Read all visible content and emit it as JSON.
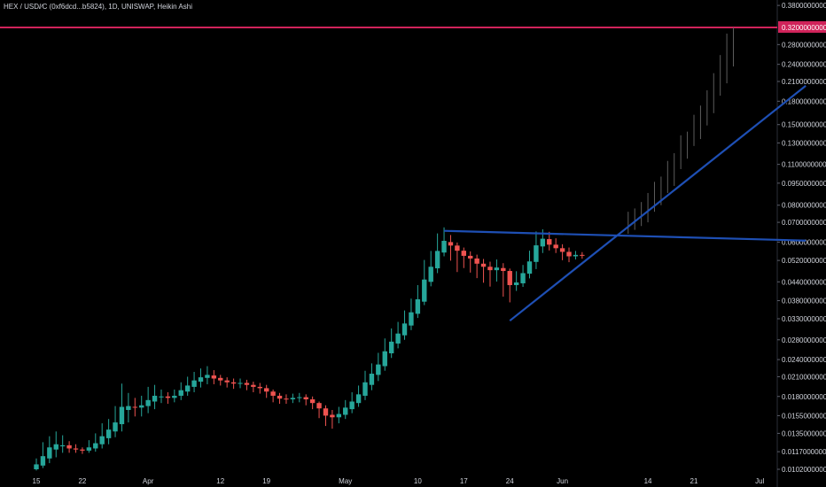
{
  "header": {
    "symbol_line": "HEX / USD/∕C (0xf6dcd...b5824), 1D, UNISWAP, Heikin Ashi"
  },
  "colors": {
    "background": "#000000",
    "up_candle": "#26a69a",
    "down_candle": "#ef5350",
    "projection": "#5d5d5d",
    "trendline": "#1e4fb4",
    "horizontal_line": "#d0235a",
    "axis_text": "#d1d4dc"
  },
  "chart_data": {
    "type": "candlestick",
    "chart_style": "Heikin Ashi",
    "scale": "log",
    "x_axis": {
      "ticks": [
        "15",
        "22",
        "Apr",
        "12",
        "19",
        "May",
        "10",
        "17",
        "24",
        "Jun",
        "14",
        "21",
        "Jul"
      ],
      "tick_days": [
        0,
        7,
        17,
        28,
        35,
        47,
        58,
        65,
        72,
        80,
        93,
        100,
        110
      ]
    },
    "y_axis": {
      "ticks": [
        "0.3800000000",
        "0.2800000000",
        "0.2400000000",
        "0.2100000000",
        "0.1800000000",
        "0.1500000000",
        "0.1300000000",
        "0.1100000000",
        "0.0950000000",
        "0.0800000000",
        "0.0700000000",
        "0.0600000000",
        "0.0520000000",
        "0.0440000000",
        "0.0380000000",
        "0.0330000000",
        "0.0280000000",
        "0.0240000000",
        "0.0210000000",
        "0.0180000000",
        "0.0155000000",
        "0.0135000000",
        "0.0117000000",
        "0.0102000000"
      ],
      "tick_values": [
        0.38,
        0.28,
        0.24,
        0.21,
        0.18,
        0.15,
        0.13,
        0.11,
        0.095,
        0.08,
        0.07,
        0.06,
        0.052,
        0.044,
        0.038,
        0.033,
        0.028,
        0.024,
        0.021,
        0.018,
        0.0155,
        0.0135,
        0.0117,
        0.0102
      ],
      "highlighted_label": "0.3200000000",
      "highlighted_value": 0.32
    },
    "candles": [
      {
        "day": 0,
        "o": 0.0102,
        "c": 0.0106,
        "h": 0.0111,
        "l": 0.0101
      },
      {
        "day": 1,
        "o": 0.0105,
        "c": 0.0113,
        "h": 0.0126,
        "l": 0.0103
      },
      {
        "day": 2,
        "o": 0.0111,
        "c": 0.0121,
        "h": 0.0132,
        "l": 0.0107
      },
      {
        "day": 3,
        "o": 0.0119,
        "c": 0.0124,
        "h": 0.0137,
        "l": 0.0112
      },
      {
        "day": 4,
        "o": 0.0122,
        "c": 0.0123,
        "h": 0.0133,
        "l": 0.0116
      },
      {
        "day": 5,
        "o": 0.0123,
        "c": 0.012,
        "h": 0.0127,
        "l": 0.0116
      },
      {
        "day": 6,
        "o": 0.012,
        "c": 0.0119,
        "h": 0.0124,
        "l": 0.0116
      },
      {
        "day": 7,
        "o": 0.0119,
        "c": 0.0118,
        "h": 0.0121,
        "l": 0.0115
      },
      {
        "day": 8,
        "o": 0.0118,
        "c": 0.0121,
        "h": 0.0128,
        "l": 0.0116
      },
      {
        "day": 9,
        "o": 0.012,
        "c": 0.0125,
        "h": 0.0135,
        "l": 0.0117
      },
      {
        "day": 10,
        "o": 0.0124,
        "c": 0.0132,
        "h": 0.0146,
        "l": 0.012
      },
      {
        "day": 11,
        "o": 0.013,
        "c": 0.0139,
        "h": 0.0151,
        "l": 0.0124
      },
      {
        "day": 12,
        "o": 0.0137,
        "c": 0.0147,
        "h": 0.0167,
        "l": 0.0131
      },
      {
        "day": 13,
        "o": 0.0145,
        "c": 0.0166,
        "h": 0.0199,
        "l": 0.0137
      },
      {
        "day": 14,
        "o": 0.0162,
        "c": 0.0167,
        "h": 0.0185,
        "l": 0.0147
      },
      {
        "day": 15,
        "o": 0.0166,
        "c": 0.0165,
        "h": 0.0178,
        "l": 0.0154
      },
      {
        "day": 16,
        "o": 0.0165,
        "c": 0.0168,
        "h": 0.0181,
        "l": 0.0154
      },
      {
        "day": 17,
        "o": 0.0167,
        "c": 0.0175,
        "h": 0.0194,
        "l": 0.0158
      },
      {
        "day": 18,
        "o": 0.0173,
        "c": 0.0181,
        "h": 0.0197,
        "l": 0.0163
      },
      {
        "day": 19,
        "o": 0.018,
        "c": 0.018,
        "h": 0.019,
        "l": 0.0171
      },
      {
        "day": 20,
        "o": 0.018,
        "c": 0.0178,
        "h": 0.0186,
        "l": 0.017
      },
      {
        "day": 21,
        "o": 0.0178,
        "c": 0.0181,
        "h": 0.019,
        "l": 0.0172
      },
      {
        "day": 22,
        "o": 0.0181,
        "c": 0.0189,
        "h": 0.0201,
        "l": 0.0175
      },
      {
        "day": 23,
        "o": 0.0187,
        "c": 0.0196,
        "h": 0.021,
        "l": 0.0181
      },
      {
        "day": 24,
        "o": 0.0194,
        "c": 0.0204,
        "h": 0.0218,
        "l": 0.0186
      },
      {
        "day": 25,
        "o": 0.0202,
        "c": 0.0209,
        "h": 0.0224,
        "l": 0.0193
      },
      {
        "day": 26,
        "o": 0.0208,
        "c": 0.0213,
        "h": 0.0228,
        "l": 0.0198
      },
      {
        "day": 27,
        "o": 0.0212,
        "c": 0.0207,
        "h": 0.0221,
        "l": 0.0198
      },
      {
        "day": 28,
        "o": 0.0208,
        "c": 0.0204,
        "h": 0.0213,
        "l": 0.0196
      },
      {
        "day": 29,
        "o": 0.0204,
        "c": 0.0201,
        "h": 0.0209,
        "l": 0.0193
      },
      {
        "day": 30,
        "o": 0.0201,
        "c": 0.0199,
        "h": 0.0207,
        "l": 0.0191
      },
      {
        "day": 31,
        "o": 0.0199,
        "c": 0.02,
        "h": 0.0207,
        "l": 0.0192
      },
      {
        "day": 32,
        "o": 0.02,
        "c": 0.0197,
        "h": 0.0205,
        "l": 0.0189
      },
      {
        "day": 33,
        "o": 0.0197,
        "c": 0.0194,
        "h": 0.0202,
        "l": 0.0186
      },
      {
        "day": 34,
        "o": 0.0194,
        "c": 0.0192,
        "h": 0.02,
        "l": 0.0184
      },
      {
        "day": 35,
        "o": 0.0192,
        "c": 0.0187,
        "h": 0.0197,
        "l": 0.0178
      },
      {
        "day": 36,
        "o": 0.0187,
        "c": 0.0181,
        "h": 0.019,
        "l": 0.0172
      },
      {
        "day": 37,
        "o": 0.0181,
        "c": 0.0177,
        "h": 0.0185,
        "l": 0.017
      },
      {
        "day": 38,
        "o": 0.0177,
        "c": 0.0176,
        "h": 0.0183,
        "l": 0.017
      },
      {
        "day": 39,
        "o": 0.0176,
        "c": 0.0178,
        "h": 0.0184,
        "l": 0.0171
      },
      {
        "day": 40,
        "o": 0.0178,
        "c": 0.0179,
        "h": 0.0185,
        "l": 0.0172
      },
      {
        "day": 41,
        "o": 0.0179,
        "c": 0.0176,
        "h": 0.0183,
        "l": 0.0168
      },
      {
        "day": 42,
        "o": 0.0176,
        "c": 0.0171,
        "h": 0.018,
        "l": 0.0163
      },
      {
        "day": 43,
        "o": 0.0171,
        "c": 0.0164,
        "h": 0.0173,
        "l": 0.0152
      },
      {
        "day": 44,
        "o": 0.0164,
        "c": 0.0155,
        "h": 0.0168,
        "l": 0.0143
      },
      {
        "day": 45,
        "o": 0.0156,
        "c": 0.0153,
        "h": 0.0162,
        "l": 0.014
      },
      {
        "day": 46,
        "o": 0.0153,
        "c": 0.0157,
        "h": 0.0166,
        "l": 0.0146
      },
      {
        "day": 47,
        "o": 0.0156,
        "c": 0.0165,
        "h": 0.0175,
        "l": 0.0151
      },
      {
        "day": 48,
        "o": 0.0163,
        "c": 0.0173,
        "h": 0.0186,
        "l": 0.0158
      },
      {
        "day": 49,
        "o": 0.0171,
        "c": 0.0183,
        "h": 0.0196,
        "l": 0.0166
      },
      {
        "day": 50,
        "o": 0.0181,
        "c": 0.0201,
        "h": 0.022,
        "l": 0.0175
      },
      {
        "day": 51,
        "o": 0.0197,
        "c": 0.0215,
        "h": 0.0233,
        "l": 0.0189
      },
      {
        "day": 52,
        "o": 0.0213,
        "c": 0.0231,
        "h": 0.0253,
        "l": 0.0203
      },
      {
        "day": 53,
        "o": 0.0228,
        "c": 0.0256,
        "h": 0.0283,
        "l": 0.022
      },
      {
        "day": 54,
        "o": 0.0252,
        "c": 0.0276,
        "h": 0.0306,
        "l": 0.0243
      },
      {
        "day": 55,
        "o": 0.0272,
        "c": 0.0294,
        "h": 0.0322,
        "l": 0.0262
      },
      {
        "day": 56,
        "o": 0.029,
        "c": 0.0318,
        "h": 0.0352,
        "l": 0.028
      },
      {
        "day": 57,
        "o": 0.0313,
        "c": 0.0347,
        "h": 0.0386,
        "l": 0.0302
      },
      {
        "day": 58,
        "o": 0.0343,
        "c": 0.0384,
        "h": 0.0429,
        "l": 0.0332
      },
      {
        "day": 59,
        "o": 0.0377,
        "c": 0.0448,
        "h": 0.0522,
        "l": 0.0367
      },
      {
        "day": 60,
        "o": 0.044,
        "c": 0.0495,
        "h": 0.056,
        "l": 0.0425
      },
      {
        "day": 61,
        "o": 0.0489,
        "c": 0.056,
        "h": 0.0642,
        "l": 0.0471
      },
      {
        "day": 62,
        "o": 0.0553,
        "c": 0.0606,
        "h": 0.0673,
        "l": 0.0537
      },
      {
        "day": 63,
        "o": 0.06,
        "c": 0.0584,
        "h": 0.0634,
        "l": 0.0519
      },
      {
        "day": 64,
        "o": 0.0584,
        "c": 0.0561,
        "h": 0.0598,
        "l": 0.0475
      },
      {
        "day": 65,
        "o": 0.0561,
        "c": 0.0539,
        "h": 0.0575,
        "l": 0.049
      },
      {
        "day": 66,
        "o": 0.0539,
        "c": 0.0528,
        "h": 0.0558,
        "l": 0.0473
      },
      {
        "day": 67,
        "o": 0.0528,
        "c": 0.0507,
        "h": 0.0544,
        "l": 0.0453
      },
      {
        "day": 68,
        "o": 0.0507,
        "c": 0.0495,
        "h": 0.0526,
        "l": 0.0437
      },
      {
        "day": 69,
        "o": 0.0495,
        "c": 0.0482,
        "h": 0.0515,
        "l": 0.0424
      },
      {
        "day": 70,
        "o": 0.0482,
        "c": 0.0492,
        "h": 0.0524,
        "l": 0.0441
      },
      {
        "day": 71,
        "o": 0.049,
        "c": 0.0479,
        "h": 0.0509,
        "l": 0.0392
      },
      {
        "day": 72,
        "o": 0.0479,
        "c": 0.0429,
        "h": 0.0488,
        "l": 0.0375
      },
      {
        "day": 73,
        "o": 0.0429,
        "c": 0.0438,
        "h": 0.0478,
        "l": 0.041
      },
      {
        "day": 74,
        "o": 0.0435,
        "c": 0.0471,
        "h": 0.0502,
        "l": 0.0423
      },
      {
        "day": 75,
        "o": 0.0469,
        "c": 0.0516,
        "h": 0.0561,
        "l": 0.0452
      },
      {
        "day": 76,
        "o": 0.0514,
        "c": 0.0585,
        "h": 0.0652,
        "l": 0.0486
      },
      {
        "day": 77,
        "o": 0.058,
        "c": 0.0616,
        "h": 0.0663,
        "l": 0.0551
      },
      {
        "day": 78,
        "o": 0.0614,
        "c": 0.0588,
        "h": 0.065,
        "l": 0.0562
      },
      {
        "day": 79,
        "o": 0.0588,
        "c": 0.0572,
        "h": 0.0618,
        "l": 0.0551
      },
      {
        "day": 80,
        "o": 0.0572,
        "c": 0.0556,
        "h": 0.059,
        "l": 0.0521
      },
      {
        "day": 81,
        "o": 0.0556,
        "c": 0.0537,
        "h": 0.0575,
        "l": 0.0513
      },
      {
        "day": 82,
        "o": 0.0537,
        "c": 0.0543,
        "h": 0.056,
        "l": 0.0524
      },
      {
        "day": 83,
        "o": 0.0543,
        "c": 0.054,
        "h": 0.0555,
        "l": 0.0527
      }
    ],
    "projection_bars": [
      {
        "day": 90,
        "h": 0.076,
        "l": 0.064
      },
      {
        "day": 91,
        "h": 0.078,
        "l": 0.066
      },
      {
        "day": 92,
        "h": 0.082,
        "l": 0.068
      },
      {
        "day": 93,
        "h": 0.088,
        "l": 0.07
      },
      {
        "day": 94,
        "h": 0.096,
        "l": 0.076
      },
      {
        "day": 95,
        "h": 0.1,
        "l": 0.08
      },
      {
        "day": 96,
        "h": 0.113,
        "l": 0.088
      },
      {
        "day": 97,
        "h": 0.12,
        "l": 0.093
      },
      {
        "day": 98,
        "h": 0.138,
        "l": 0.106
      },
      {
        "day": 99,
        "h": 0.142,
        "l": 0.115
      },
      {
        "day": 100,
        "h": 0.162,
        "l": 0.127
      },
      {
        "day": 101,
        "h": 0.174,
        "l": 0.134
      },
      {
        "day": 102,
        "h": 0.196,
        "l": 0.149
      },
      {
        "day": 103,
        "h": 0.224,
        "l": 0.164
      },
      {
        "day": 104,
        "h": 0.258,
        "l": 0.188
      },
      {
        "day": 105,
        "h": 0.305,
        "l": 0.207
      },
      {
        "day": 106,
        "h": 0.32,
        "l": 0.236
      }
    ],
    "trendlines": [
      {
        "d1": 62,
        "p1": 0.0655,
        "d2": 117,
        "p2": 0.0607
      },
      {
        "d1": 72,
        "p1": 0.0325,
        "d2": 117,
        "p2": 0.203
      }
    ],
    "horizontal_line": 0.32
  }
}
